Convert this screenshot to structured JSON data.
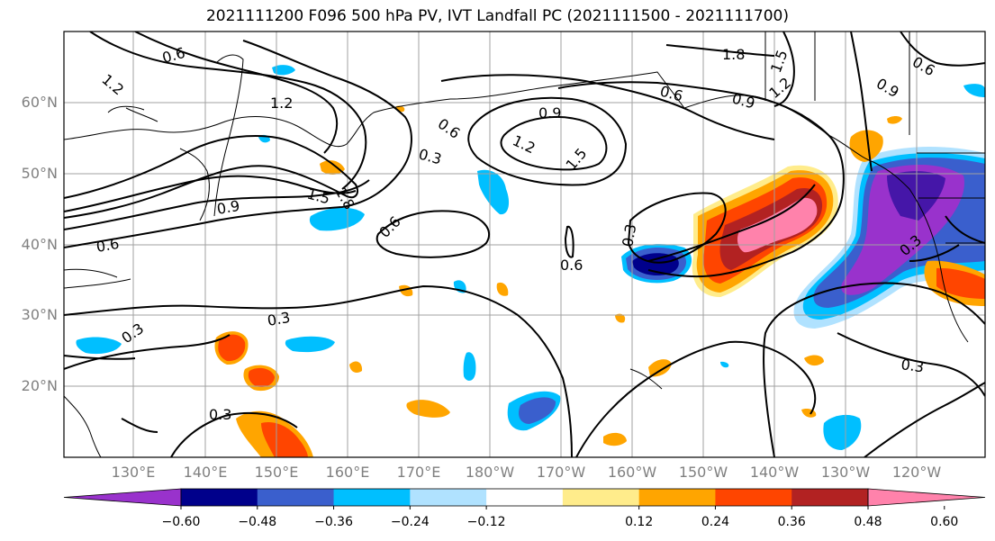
{
  "title": "2021111200 F096 500 hPa PV, IVT Landfall PC (2021111500 - 2021111700)",
  "lat_labels": [
    "60°N",
    "50°N",
    "40°N",
    "30°N",
    "20°N"
  ],
  "lon_labels": [
    "130°E",
    "140°E",
    "150°E",
    "160°E",
    "170°E",
    "180°W",
    "170°W",
    "160°W",
    "150°W",
    "140°W",
    "130°W",
    "120°W"
  ],
  "colorbar": {
    "ticks": [
      "−0.60",
      "−0.48",
      "−0.36",
      "−0.24",
      "−0.12",
      "0.12",
      "0.24",
      "0.36",
      "0.48",
      "0.60"
    ],
    "colors": [
      "#9932CC",
      "#00008B",
      "#3A5FCD",
      "#00BFFF",
      "#B0E2FF",
      "#FFFFFF",
      "#FFEC8B",
      "#FFA500",
      "#FF4500",
      "#B22222",
      "#FF82AB"
    ]
  },
  "pv_contour_labels": [
    "1.2",
    "0.6",
    "1.2",
    "1.5",
    "1.8",
    "0.9",
    "0.6",
    "0.3",
    "0.9",
    "0.6",
    "1.2",
    "1.5",
    "1.8",
    "1.5",
    "0.6",
    "0.9",
    "1.2",
    "0.6",
    "0.9",
    "0.6",
    "0.3",
    "0.6",
    "0.3",
    "0.3",
    "0.3",
    "0.3",
    "0.3"
  ]
}
